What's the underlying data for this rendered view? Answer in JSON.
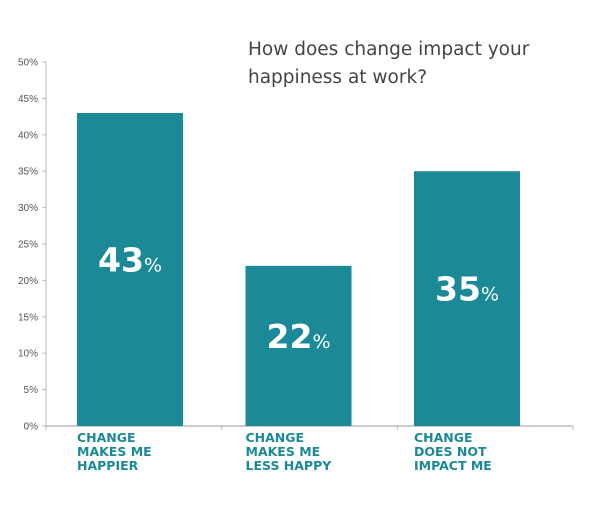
{
  "chart_data": {
    "type": "bar",
    "title": [
      "How does change impact your",
      "happiness at work?"
    ],
    "categories": [
      [
        "CHANGE",
        "MAKES ME",
        "HAPPIER"
      ],
      [
        "CHANGE",
        "MAKES ME",
        "LESS HAPPY"
      ],
      [
        "CHANGE",
        "DOES NOT",
        "IMPACT ME"
      ]
    ],
    "values": [
      43,
      22,
      35
    ],
    "data_labels": [
      "43",
      "22",
      "35"
    ],
    "data_label_suffix": "%",
    "yticks": [
      "0%",
      "5%",
      "10%",
      "15%",
      "20%",
      "25%",
      "30%",
      "35%",
      "40%",
      "45%",
      "50%"
    ],
    "ylim": [
      0,
      50
    ],
    "grid": false,
    "xlabel": "",
    "ylabel": "",
    "colors": {
      "bar": "#1b8a96",
      "category_text": "#1b8a96",
      "title": "#444444",
      "axis": "#bbbbbb"
    }
  }
}
